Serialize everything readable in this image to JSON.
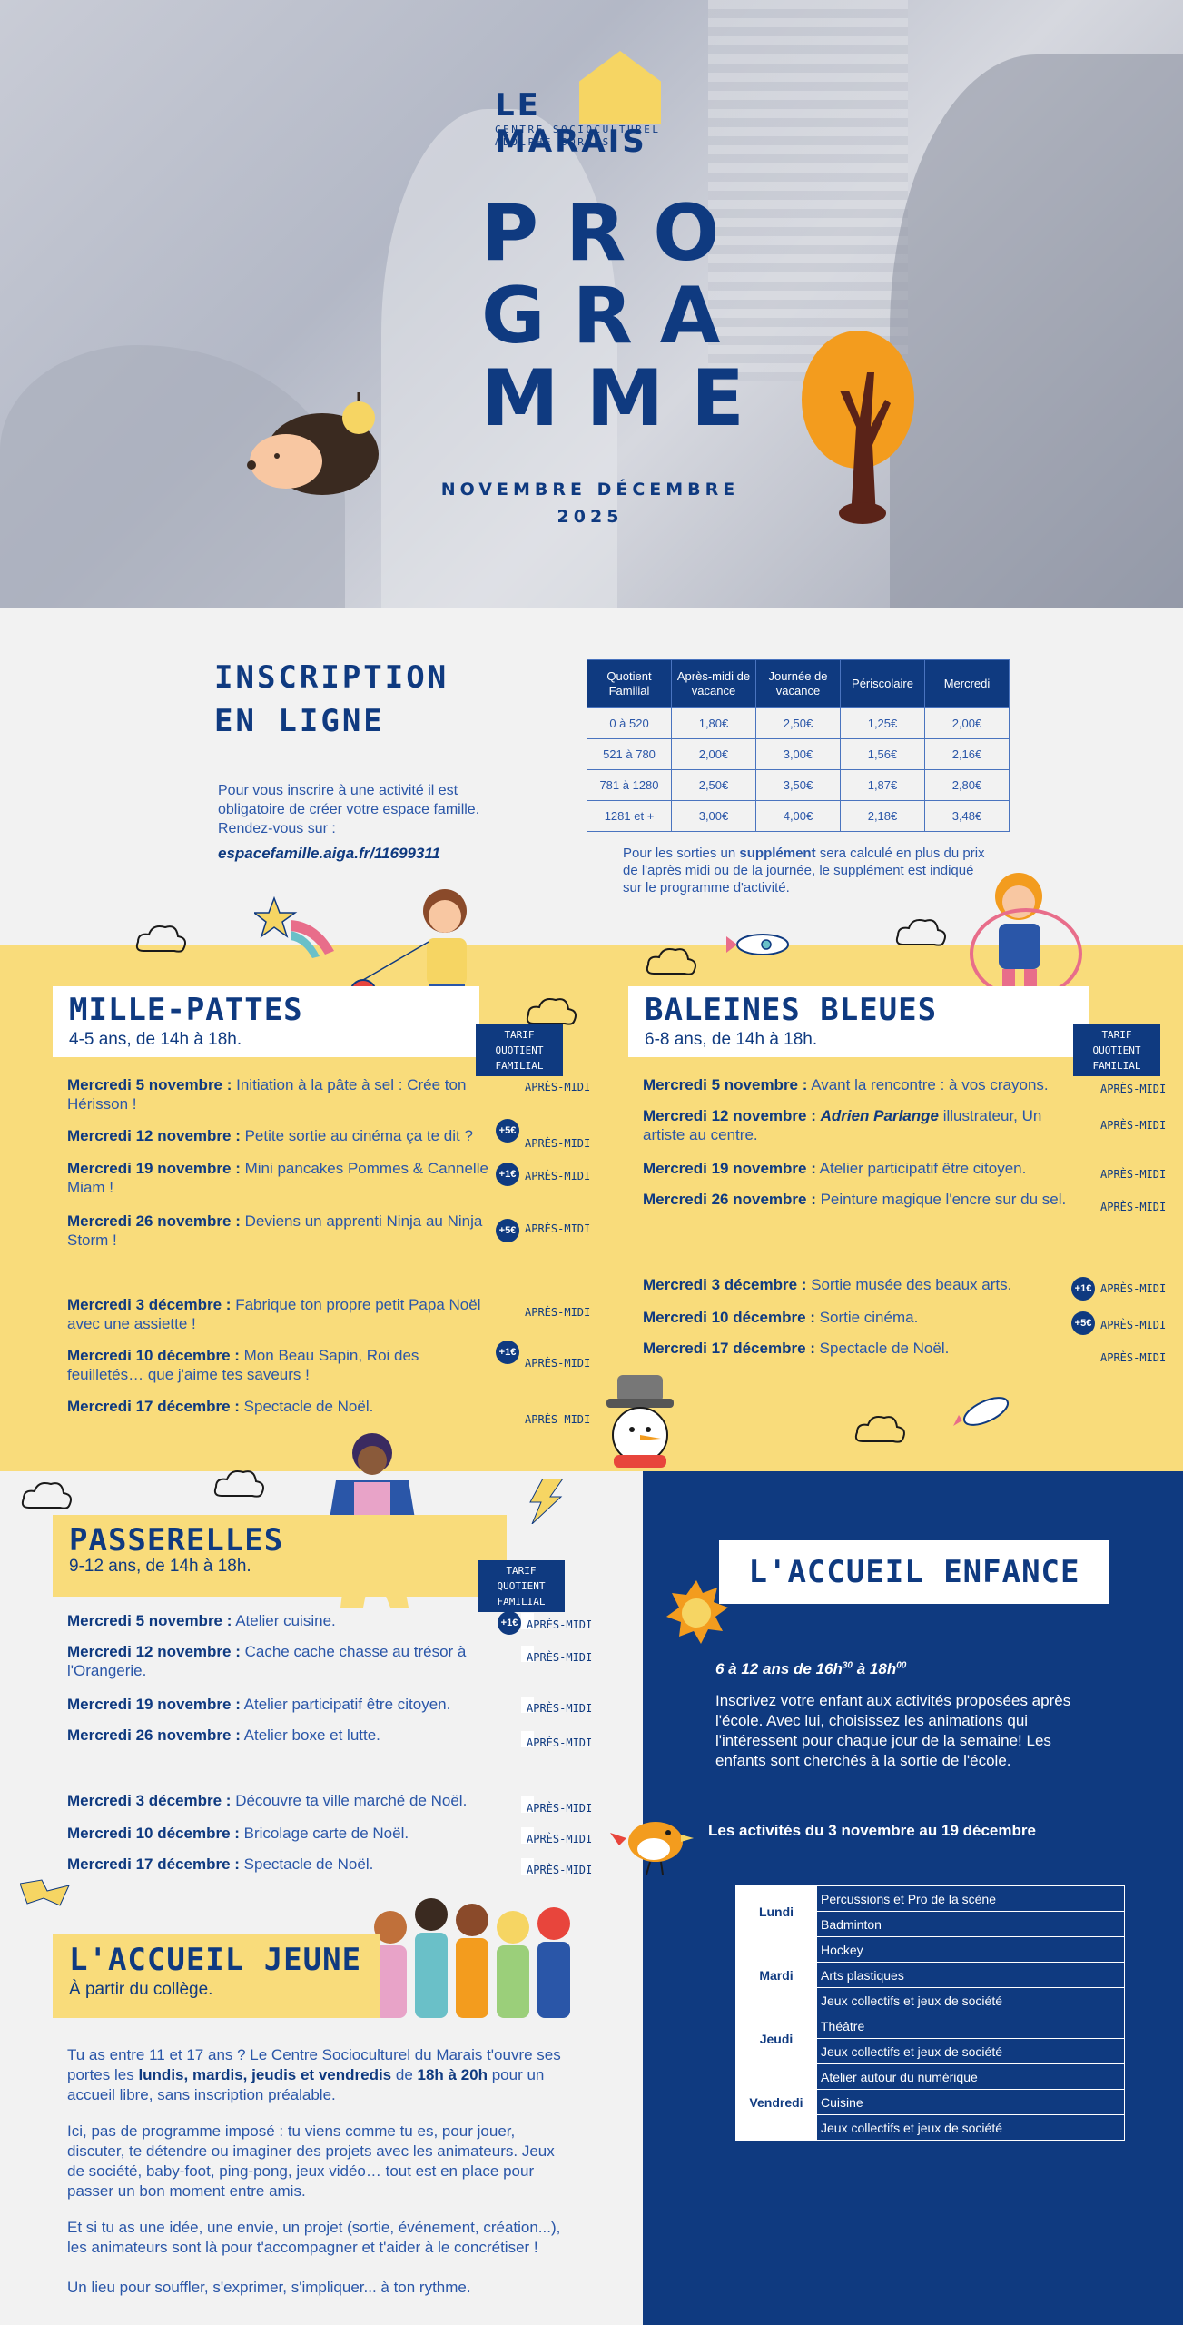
{
  "header": {
    "logo_title": "LE MARAIS",
    "logo_sub1": "CENTRE SOCIOCULTUREL",
    "logo_sub2": "ADOLPHE SORGUS",
    "title_lines": [
      "PRO",
      "GRA",
      "MME"
    ],
    "period_line1": "NOVEMBRE DÉCEMBRE",
    "period_line2": "2025"
  },
  "inscription": {
    "title_line1": "INSCRIPTION",
    "title_line2": "EN LIGNE",
    "text": "Pour vous inscrire à une activité il est obligatoire de créer votre espace famille. Rendez-vous sur :",
    "link": "espacefamille.aiga.fr/11699311",
    "table_headers": [
      "Quotient Familial",
      "Après-midi de vacance",
      "Journée de vacance",
      "Périscolaire",
      "Mercredi"
    ],
    "table_rows": [
      [
        "0 à 520",
        "1,80€",
        "2,50€",
        "1,25€",
        "2,00€"
      ],
      [
        "521 à 780",
        "2,00€",
        "3,00€",
        "1,56€",
        "2,16€"
      ],
      [
        "781 à 1280",
        "2,50€",
        "3,50€",
        "1,87€",
        "2,80€"
      ],
      [
        "1281 et +",
        "3,00€",
        "4,00€",
        "2,18€",
        "3,48€"
      ]
    ],
    "supplement_pre": "Pour les sorties un ",
    "supplement_bold": "supplément",
    "supplement_post": " sera calculé en plus du prix de l'après midi ou de la journée, le supplément est indiqué sur le programme d'activité."
  },
  "badge": {
    "line1": "TARIF QUOTIENT",
    "line2": "FAMILIAL"
  },
  "apres_midi": "APRÈS-MIDI",
  "mille_pattes": {
    "title": "MILLE-PATTES",
    "subtitle": "4-5 ans, de 14h à 18h.",
    "items": [
      {
        "date": "Mercredi 5 novembre :",
        "text": " Initiation à la pâte à sel : Crée ton Hérisson !",
        "plus": ""
      },
      {
        "date": "Mercredi 12 novembre :",
        "text": " Petite sortie au cinéma ça te dit ?",
        "plus": "+5€"
      },
      {
        "date": "Mercredi 19 novembre :",
        "text": " Mini pancakes Pommes & Cannelle Miam !",
        "plus": "+1€"
      },
      {
        "date": "Mercredi 26 novembre :",
        "text": " Deviens un apprenti Ninja au Ninja Storm !",
        "plus": "+5€"
      },
      {
        "date": "Mercredi 3 décembre :",
        "text": " Fabrique ton propre petit Papa Noël avec une assiette !",
        "plus": ""
      },
      {
        "date": "Mercredi 10 décembre :",
        "text": " Mon Beau Sapin, Roi des feuilletés… que j'aime tes saveurs !",
        "plus": "+1€"
      },
      {
        "date": "Mercredi 17 décembre :",
        "text": " Spectacle de Noël.",
        "plus": ""
      }
    ]
  },
  "baleines": {
    "title": "BALEINES BLEUES",
    "subtitle": "6-8 ans, de 14h à 18h.",
    "items": [
      {
        "date": "Mercredi 5 novembre :",
        "text": " Avant la rencontre : à vos crayons.",
        "italic": "",
        "text2": "",
        "plus": ""
      },
      {
        "date": "Mercredi 12 novembre :",
        "text": " ",
        "italic": "Adrien Parlange",
        "text2": " illustrateur, Un artiste au centre.",
        "plus": ""
      },
      {
        "date": "Mercredi 19 novembre :",
        "text": " Atelier participatif être citoyen.",
        "italic": "",
        "text2": "",
        "plus": ""
      },
      {
        "date": "Mercredi 26 novembre :",
        "text": " Peinture magique l'encre sur du sel.",
        "italic": "",
        "text2": "",
        "plus": ""
      },
      {
        "date": "Mercredi 3 décembre :",
        "text": " Sortie musée des beaux arts.",
        "italic": "",
        "text2": "",
        "plus": "+1€"
      },
      {
        "date": "Mercredi 10 décembre :",
        "text": " Sortie cinéma.",
        "italic": "",
        "text2": "",
        "plus": "+5€"
      },
      {
        "date": "Mercredi 17 décembre :",
        "text": " Spectacle de Noël.",
        "italic": "",
        "text2": "",
        "plus": ""
      }
    ]
  },
  "passerelles": {
    "title": "PASSERELLES",
    "subtitle": "9-12 ans, de 14h à 18h.",
    "items": [
      {
        "date": "Mercredi 5 novembre :",
        "text": " Atelier cuisine.",
        "plus": "+1€"
      },
      {
        "date": "Mercredi 12 novembre :",
        "text": " Cache cache chasse au trésor à l'Orangerie.",
        "plus": ""
      },
      {
        "date": "Mercredi 19 novembre :",
        "text": " Atelier participatif être citoyen.",
        "plus": ""
      },
      {
        "date": "Mercredi 26 novembre :",
        "text": " Atelier boxe et lutte.",
        "plus": ""
      },
      {
        "date": "Mercredi 3 décembre :",
        "text": " Découvre ta ville marché de Noël.",
        "plus": ""
      },
      {
        "date": "Mercredi 10 décembre :",
        "text": " Bricolage carte de Noël.",
        "plus": ""
      },
      {
        "date": "Mercredi 17 décembre :",
        "text": " Spectacle de Noël.",
        "plus": ""
      }
    ]
  },
  "accueil_jeune": {
    "title": "L'ACCUEIL JEUNE",
    "subtitle": "À partir du collège.",
    "p1_a": "Tu as entre 11 et 17 ans ? Le Centre Socioculturel du Marais t'ouvre ses portes les ",
    "p1_b": "lundis, mardis, jeudis et vendredis",
    "p1_c": " de ",
    "p1_d": "18h à 20h",
    "p1_e": " pour un accueil libre, sans inscription préalable.",
    "p2": "Ici, pas de programme imposé : tu viens comme tu es, pour jouer, discuter, te détendre ou imaginer des projets avec les animateurs. Jeux de société, baby-foot, ping-pong, jeux vidéo… tout est en place pour passer un bon moment entre amis.",
    "p3": "Et si tu as une idée, une envie, un projet (sortie, événement, création...), les animateurs sont là pour t'accompagner et t'aider à le concrétiser !",
    "p4": "Un lieu pour souffler, s'exprimer, s'impliquer... à ton rythme."
  },
  "accueil_enfance": {
    "title": "L'ACCUEIL ENFANCE",
    "age": "6 à 12 ans",
    "de": " de ",
    "h1": "16h",
    "h1sup": "30",
    "a": " à ",
    "h2": "18h",
    "h2sup": "00",
    "text": "Inscrivez votre enfant aux activités proposées après l'école. Avec lui, choisissez les animations qui l'intéressent pour chaque jour de la semaine! Les enfants sont cherchés à la sortie de l'école.",
    "activities_title": "Les activités du 3 novembre au 19 décembre",
    "days": [
      {
        "day": "Lundi",
        "acts": [
          "Percussions et Pro de la scène",
          "Badminton"
        ]
      },
      {
        "day": "Mardi",
        "acts": [
          "Hockey",
          "Arts plastiques",
          "Jeux collectifs et jeux de société"
        ]
      },
      {
        "day": "Jeudi",
        "acts": [
          "Théâtre",
          "Jeux collectifs et jeux de société"
        ]
      },
      {
        "day": "Vendredi",
        "acts": [
          "Atelier autour du numérique",
          "Cuisine",
          "Jeux collectifs et jeux de société"
        ]
      }
    ]
  },
  "colors": {
    "navy": "#0f3a80",
    "yellow": "#f9dc7b",
    "accent": "#f6d563",
    "orange": "#f39c1e"
  }
}
